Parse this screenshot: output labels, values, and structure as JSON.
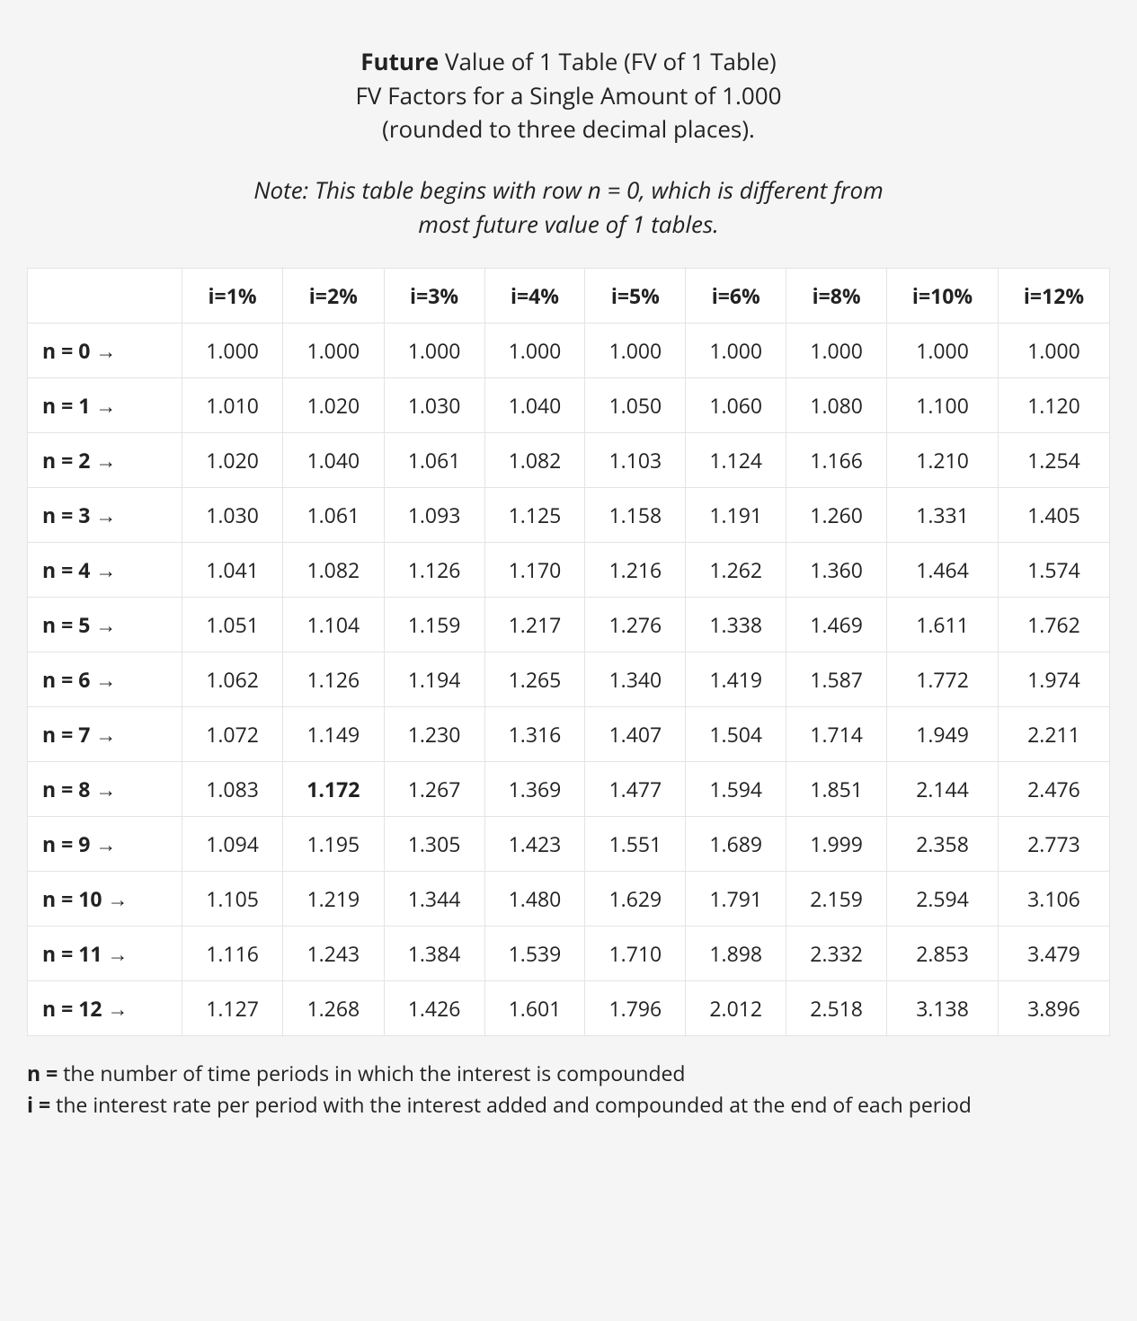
{
  "title": {
    "line1_bold": "Future",
    "line1_rest": " Value of 1 Table (FV of 1 Table)",
    "line2": "FV Factors for a Single Amount of 1.000",
    "line3": "(rounded to three decimal places)."
  },
  "note": {
    "line1": "Note: This table begins with row n = 0, which is different from",
    "line2": "most future value of 1 tables."
  },
  "table": {
    "type": "table",
    "columns": [
      "",
      "i=1%",
      "i=2%",
      "i=3%",
      "i=4%",
      "i=5%",
      "i=6%",
      "i=8%",
      "i=10%",
      "i=12%"
    ],
    "row_labels": [
      "n = 0",
      "n = 1",
      "n = 2",
      "n = 3",
      "n = 4",
      "n = 5",
      "n = 6",
      "n = 7",
      "n = 8",
      "n = 9",
      "n = 10",
      "n = 11",
      "n = 12"
    ],
    "rows": [
      [
        "1.000",
        "1.000",
        "1.000",
        "1.000",
        "1.000",
        "1.000",
        "1.000",
        "1.000",
        "1.000"
      ],
      [
        "1.010",
        "1.020",
        "1.030",
        "1.040",
        "1.050",
        "1.060",
        "1.080",
        "1.100",
        "1.120"
      ],
      [
        "1.020",
        "1.040",
        "1.061",
        "1.082",
        "1.103",
        "1.124",
        "1.166",
        "1.210",
        "1.254"
      ],
      [
        "1.030",
        "1.061",
        "1.093",
        "1.125",
        "1.158",
        "1.191",
        "1.260",
        "1.331",
        "1.405"
      ],
      [
        "1.041",
        "1.082",
        "1.126",
        "1.170",
        "1.216",
        "1.262",
        "1.360",
        "1.464",
        "1.574"
      ],
      [
        "1.051",
        "1.104",
        "1.159",
        "1.217",
        "1.276",
        "1.338",
        "1.469",
        "1.611",
        "1.762"
      ],
      [
        "1.062",
        "1.126",
        "1.194",
        "1.265",
        "1.340",
        "1.419",
        "1.587",
        "1.772",
        "1.974"
      ],
      [
        "1.072",
        "1.149",
        "1.230",
        "1.316",
        "1.407",
        "1.504",
        "1.714",
        "1.949",
        "2.211"
      ],
      [
        "1.083",
        "1.172",
        "1.267",
        "1.369",
        "1.477",
        "1.594",
        "1.851",
        "2.144",
        "2.476"
      ],
      [
        "1.094",
        "1.195",
        "1.305",
        "1.423",
        "1.551",
        "1.689",
        "1.999",
        "2.358",
        "2.773"
      ],
      [
        "1.105",
        "1.219",
        "1.344",
        "1.480",
        "1.629",
        "1.791",
        "2.159",
        "2.594",
        "3.106"
      ],
      [
        "1.116",
        "1.243",
        "1.384",
        "1.539",
        "1.710",
        "1.898",
        "2.332",
        "2.853",
        "3.479"
      ],
      [
        "1.127",
        "1.268",
        "1.426",
        "1.601",
        "1.796",
        "2.012",
        "2.518",
        "3.138",
        "3.896"
      ]
    ],
    "bold_cells": [
      [
        8,
        1
      ]
    ],
    "colors": {
      "background": "#ffffff",
      "border": "#e4e4e4",
      "text": "#222222",
      "page_background": "#f5f5f5"
    },
    "arrow_glyph": " →"
  },
  "legend": {
    "n_label": "n =",
    "n_text": " the number of time periods in which the interest is compounded",
    "i_label": "i =",
    "i_text": " the interest rate per period with the interest added and compounded at the end of each period"
  }
}
